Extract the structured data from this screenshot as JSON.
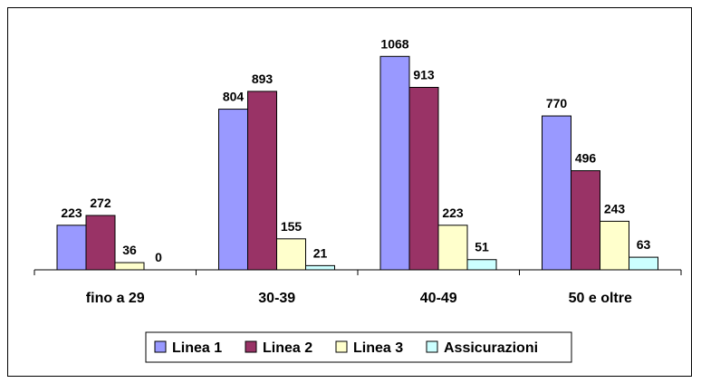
{
  "chart_data": {
    "type": "bar",
    "categories": [
      "fino a 29",
      "30-39",
      "40-49",
      "50 e oltre"
    ],
    "series": [
      {
        "name": "Linea 1",
        "values": [
          223,
          804,
          1068,
          770
        ],
        "color": "#9999FF"
      },
      {
        "name": "Linea 2",
        "values": [
          272,
          893,
          913,
          496
        ],
        "color": "#993366"
      },
      {
        "name": "Linea 3",
        "values": [
          36,
          155,
          223,
          243
        ],
        "color": "#FFFFCC"
      },
      {
        "name": "Assicurazioni",
        "values": [
          0,
          21,
          51,
          63
        ],
        "color": "#CCFFFF"
      }
    ],
    "ylim": [
      0,
      1100
    ],
    "legend": "bottom",
    "grid": false,
    "data_labels": true
  }
}
